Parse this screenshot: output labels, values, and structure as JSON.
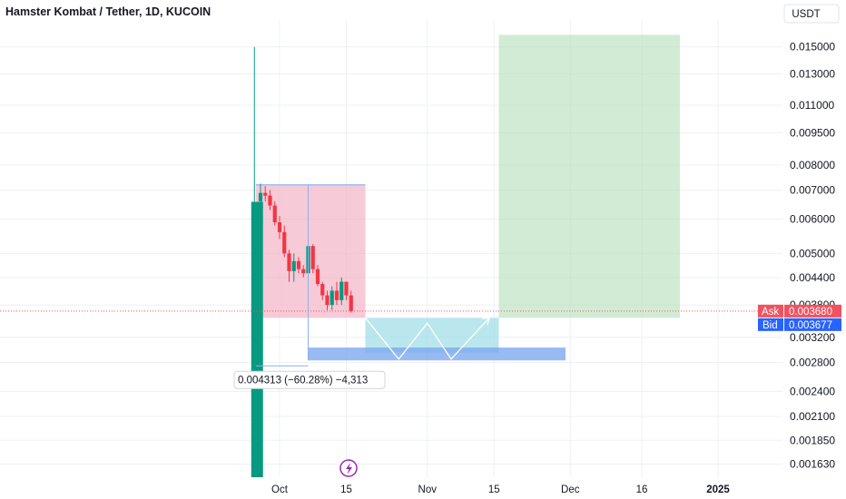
{
  "header": {
    "title": "Hamster Kombat / Tether, 1D, KUCOIN"
  },
  "currency_button": "USDT",
  "chart_data": {
    "type": "candlestick",
    "title": "Hamster Kombat / Tether, 1D, KUCOIN",
    "y_scale": "log",
    "ylim": [
      0.00152,
      0.0165
    ],
    "y_ticks": [
      "0.015000",
      "0.013000",
      "0.011000",
      "0.009500",
      "0.008000",
      "0.007000",
      "0.006000",
      "0.005000",
      "0.004400",
      "0.003800",
      "0.003200",
      "0.002800",
      "0.002400",
      "0.002100",
      "0.001850",
      "0.001630"
    ],
    "x_range": [
      "2024-09-20",
      "2025-01-04"
    ],
    "x_ticks": [
      {
        "date": "2024-10-01",
        "label": "Oct",
        "bold": false
      },
      {
        "date": "2024-10-15",
        "label": "15",
        "bold": false
      },
      {
        "date": "2024-11-01",
        "label": "Nov",
        "bold": false
      },
      {
        "date": "2024-11-15",
        "label": "15",
        "bold": false
      },
      {
        "date": "2024-12-01",
        "label": "Dec",
        "bold": false
      },
      {
        "date": "2024-12-16",
        "label": "16",
        "bold": false
      },
      {
        "date": "2025-01-01",
        "label": "2025",
        "bold": true
      }
    ],
    "candles": [
      {
        "date": "2024-09-26",
        "open": 0.00152,
        "high": 0.015,
        "low": 0.00152,
        "close": 0.00658
      },
      {
        "date": "2024-09-27",
        "open": 0.0066,
        "high": 0.00725,
        "low": 0.0064,
        "close": 0.0069
      },
      {
        "date": "2024-09-28",
        "open": 0.0069,
        "high": 0.00715,
        "low": 0.0066,
        "close": 0.0068
      },
      {
        "date": "2024-09-29",
        "open": 0.0068,
        "high": 0.007,
        "low": 0.0063,
        "close": 0.00645
      },
      {
        "date": "2024-09-30",
        "open": 0.00645,
        "high": 0.0066,
        "low": 0.0058,
        "close": 0.0059
      },
      {
        "date": "2024-10-01",
        "open": 0.0059,
        "high": 0.0061,
        "low": 0.0054,
        "close": 0.0056
      },
      {
        "date": "2024-10-02",
        "open": 0.0056,
        "high": 0.0058,
        "low": 0.0049,
        "close": 0.005
      },
      {
        "date": "2024-10-03",
        "open": 0.005,
        "high": 0.0051,
        "low": 0.0043,
        "close": 0.00455
      },
      {
        "date": "2024-10-04",
        "open": 0.00455,
        "high": 0.005,
        "low": 0.0043,
        "close": 0.0048
      },
      {
        "date": "2024-10-05",
        "open": 0.0048,
        "high": 0.0049,
        "low": 0.0045,
        "close": 0.0046
      },
      {
        "date": "2024-10-06",
        "open": 0.0046,
        "high": 0.0047,
        "low": 0.0044,
        "close": 0.0045
      },
      {
        "date": "2024-10-07",
        "open": 0.0045,
        "high": 0.0053,
        "low": 0.0044,
        "close": 0.0052
      },
      {
        "date": "2024-10-08",
        "open": 0.0052,
        "high": 0.00525,
        "low": 0.0045,
        "close": 0.0046
      },
      {
        "date": "2024-10-09",
        "open": 0.0046,
        "high": 0.0047,
        "low": 0.0042,
        "close": 0.00425
      },
      {
        "date": "2024-10-10",
        "open": 0.00425,
        "high": 0.0043,
        "low": 0.0039,
        "close": 0.004
      },
      {
        "date": "2024-10-11",
        "open": 0.004,
        "high": 0.0041,
        "low": 0.0037,
        "close": 0.0038
      },
      {
        "date": "2024-10-12",
        "open": 0.0038,
        "high": 0.0042,
        "low": 0.0037,
        "close": 0.0041
      },
      {
        "date": "2024-10-13",
        "open": 0.0041,
        "high": 0.0043,
        "low": 0.0038,
        "close": 0.0039
      },
      {
        "date": "2024-10-14",
        "open": 0.0039,
        "high": 0.0044,
        "low": 0.0038,
        "close": 0.0043
      },
      {
        "date": "2024-10-15",
        "open": 0.0043,
        "high": 0.0043,
        "low": 0.0039,
        "close": 0.004
      },
      {
        "date": "2024-10-16",
        "open": 0.004,
        "high": 0.0041,
        "low": 0.00365,
        "close": 0.00368
      }
    ],
    "current_price_line": 0.00368,
    "ask": {
      "label": "Ask",
      "value": "0.003680"
    },
    "bid": {
      "label": "Bid",
      "value": "0.003677"
    },
    "zones": [
      {
        "name": "pink",
        "x0": "2024-09-26",
        "x1": "2024-10-19",
        "y0": 0.00355,
        "y1": 0.0072,
        "fill": "#f3b6c6",
        "opacity": 0.72
      },
      {
        "name": "green",
        "x0": "2024-11-16",
        "x1": "2024-12-24",
        "y0": 0.00355,
        "y1": 0.016,
        "fill": "#b7deb9",
        "opacity": 0.62
      },
      {
        "name": "cyan",
        "x0": "2024-10-19",
        "x1": "2024-11-16",
        "y0": 0.00295,
        "y1": 0.00355,
        "fill": "#9fdce8",
        "opacity": 0.72
      },
      {
        "name": "blue",
        "x0": "2024-10-07",
        "x1": "2024-11-30",
        "y0": 0.00283,
        "y1": 0.00303,
        "fill": "#7aa6f0",
        "opacity": 0.78
      }
    ],
    "measure_label": "0.004313 (−60.28%) −4,313",
    "zigzag": [
      {
        "date": "2024-10-19",
        "value": 0.00355
      },
      {
        "date": "2024-10-26",
        "value": 0.00285
      },
      {
        "date": "2024-11-01",
        "value": 0.00345
      },
      {
        "date": "2024-11-06",
        "value": 0.00285
      },
      {
        "date": "2024-11-14",
        "value": 0.00355
      }
    ],
    "colors": {
      "up": "#089981",
      "down": "#f23645",
      "ask": "#f0525f",
      "bid": "#2962ff",
      "grid": "#eef0f3"
    }
  }
}
